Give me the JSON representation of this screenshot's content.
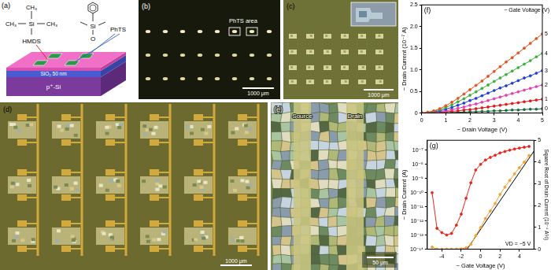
{
  "figure": {
    "panels": {
      "a": {
        "label": "(a)",
        "hmds": {
          "name": "HMDS",
          "atom": "Si",
          "groups": [
            "CH₃",
            "CH₃",
            "CH₃"
          ]
        },
        "phts": {
          "name": "PhTS",
          "atoms": [
            "Si",
            "O"
          ]
        },
        "layers": [
          "SiO₂ 50 nm",
          "p⁺-Si"
        ]
      },
      "b": {
        "label": "(b)",
        "annotation": "PhTS area",
        "scale_bar": "1000 μm"
      },
      "c": {
        "label": "(c)",
        "scale_bar": "1000 μm"
      },
      "d": {
        "label": "(d)",
        "scale_bar": "1000 μm"
      },
      "e": {
        "label": "(e)",
        "electrodes": [
          "Source",
          "Drain"
        ],
        "scale_bar": "50 μm"
      }
    }
  },
  "chart_data": [
    {
      "type": "line",
      "title": "(f)",
      "x_label": "− Drain Voltage (V)",
      "y_label": "− Drain Current (10⁻⁷ A)",
      "annotations": [
        "− Gate Voltage (V)"
      ],
      "grid": false,
      "x": [
        0,
        0.25,
        0.5,
        0.75,
        1,
        1.25,
        1.5,
        1.75,
        2,
        2.25,
        2.5,
        2.75,
        3,
        3.25,
        3.5,
        3.75,
        4,
        4.25,
        4.5,
        4.75,
        5
      ],
      "xlim": [
        0,
        5
      ],
      "xticks": [
        0,
        1,
        2,
        3,
        4,
        5
      ],
      "ylim": [
        0,
        2.5
      ],
      "yticks": [
        0,
        0.5,
        {
          "value": 1,
          "label": "1.0"
        },
        1.5,
        {
          "value": 2,
          "label": "2.0"
        },
        2.5
      ],
      "series": [
        {
          "name": "5",
          "color": "#e8501c",
          "marker": "circle",
          "line_style": "solid",
          "values": [
            0,
            0.02,
            0.05,
            0.1,
            0.17,
            0.25,
            0.34,
            0.44,
            0.54,
            0.64,
            0.74,
            0.85,
            0.96,
            1.07,
            1.18,
            1.28,
            1.39,
            1.5,
            1.61,
            1.72,
            1.83
          ]
        },
        {
          "name": "4",
          "color": "#38b03c",
          "marker": "circle",
          "line_style": "solid",
          "values": [
            0,
            0.01,
            0.04,
            0.08,
            0.13,
            0.19,
            0.26,
            0.33,
            0.41,
            0.49,
            0.57,
            0.65,
            0.73,
            0.81,
            0.89,
            0.97,
            1.05,
            1.13,
            1.21,
            1.3,
            1.38
          ]
        },
        {
          "name": "3",
          "color": "#1f3fd0",
          "marker": "circle",
          "line_style": "solid",
          "values": [
            0,
            0.01,
            0.03,
            0.05,
            0.09,
            0.13,
            0.18,
            0.23,
            0.29,
            0.34,
            0.4,
            0.46,
            0.52,
            0.58,
            0.63,
            0.69,
            0.75,
            0.81,
            0.86,
            0.92,
            0.98
          ]
        },
        {
          "name": "2",
          "color": "#e040b0",
          "marker": "circle",
          "line_style": "solid",
          "values": [
            0,
            0.01,
            0.02,
            0.03,
            0.05,
            0.08,
            0.11,
            0.14,
            0.18,
            0.21,
            0.25,
            0.29,
            0.33,
            0.37,
            0.41,
            0.45,
            0.49,
            0.53,
            0.57,
            0.61,
            0.65
          ]
        },
        {
          "name": "1",
          "color": "#e01818",
          "marker": "circle",
          "line_style": "solid",
          "values": [
            0,
            0,
            0.01,
            0.02,
            0.03,
            0.04,
            0.05,
            0.07,
            0.08,
            0.1,
            0.12,
            0.14,
            0.16,
            0.18,
            0.2,
            0.22,
            0.24,
            0.26,
            0.28,
            0.3,
            0.32
          ]
        },
        {
          "name": "0",
          "color": "#1c6c3c",
          "marker": "circle",
          "line_style": "solid",
          "values": [
            0,
            0,
            0,
            0.01,
            0.01,
            0.01,
            0.02,
            0.02,
            0.03,
            0.03,
            0.04,
            0.04,
            0.05,
            0.05,
            0.06,
            0.07,
            0.07,
            0.08,
            0.09,
            0.09,
            0.1
          ]
        }
      ]
    },
    {
      "type": "line",
      "title": "(g)",
      "x_label": "− Gate Voltage (V)",
      "y_label": "− Drain Current (A)",
      "y2_label": "Square Root of Drain Current (10⁻⁴ A½)",
      "annotations": [
        "VD = −5 V"
      ],
      "grid": false,
      "log": "y",
      "xlim": [
        -5.5,
        5.5
      ],
      "xticks": [
        -4,
        -2,
        0,
        2,
        4
      ],
      "ylim": [
        1e-14,
        5e-07
      ],
      "yticks": [
        {
          "value": 1e-14,
          "label": "10⁻¹⁴"
        },
        {
          "value": 1e-13,
          "label": "10⁻¹³"
        },
        {
          "value": 1e-12,
          "label": "10⁻¹²"
        },
        {
          "value": 1e-11,
          "label": "10⁻¹¹"
        },
        {
          "value": 1e-10,
          "label": "10⁻¹⁰"
        },
        {
          "value": 1e-09,
          "label": "10⁻⁹"
        },
        {
          "value": 1e-08,
          "label": "10⁻⁸"
        },
        {
          "value": 1e-07,
          "label": "10⁻⁷"
        }
      ],
      "y2lim": [
        0,
        5
      ],
      "y2ticks": [
        0,
        1,
        2,
        3,
        4,
        5
      ],
      "series": [
        {
          "color": "#e8251c",
          "axis": "y",
          "marker": "circle",
          "line_style": "solid",
          "x": [
            -5,
            -4.5,
            -4,
            -3.5,
            -3,
            -2.5,
            -2,
            -1.5,
            -1,
            -0.5,
            0,
            0.5,
            1,
            1.5,
            2,
            2.5,
            3,
            3.5,
            4,
            4.5,
            5
          ],
          "values": [
            1e-10,
            3e-13,
            1.5e-13,
            1e-13,
            1.3e-13,
            5e-13,
            3e-12,
            4e-11,
            5e-10,
            4e-09,
            1e-08,
            2e-08,
            3.1e-08,
            4.4e-08,
            6.3e-08,
            8.1e-08,
            1e-07,
            1.2e-07,
            1.4e-07,
            1.6e-07,
            1.85e-07
          ]
        },
        {
          "color": "#f5a030",
          "axis": "y2",
          "marker": "circle",
          "line_style": "solid",
          "x": [
            -5,
            -4.5,
            -4,
            -3.5,
            -3,
            -2.5,
            -2,
            -1.5,
            -1,
            -0.5,
            0,
            0.5,
            1,
            1.5,
            2,
            2.5,
            3,
            3.5,
            4,
            4.5,
            5
          ],
          "values": [
            0.1,
            0.005,
            0.004,
            0.003,
            0.004,
            0.007,
            0.017,
            0.063,
            0.22,
            0.63,
            1.0,
            1.41,
            1.76,
            2.1,
            2.51,
            2.85,
            3.16,
            3.46,
            3.74,
            4.0,
            4.3
          ]
        },
        {
          "color": "#000000",
          "axis": "y2",
          "marker": "none",
          "line_style": "solid",
          "x": [
            -1.4,
            5.5
          ],
          "values": [
            0,
            4.5
          ]
        }
      ]
    }
  ]
}
